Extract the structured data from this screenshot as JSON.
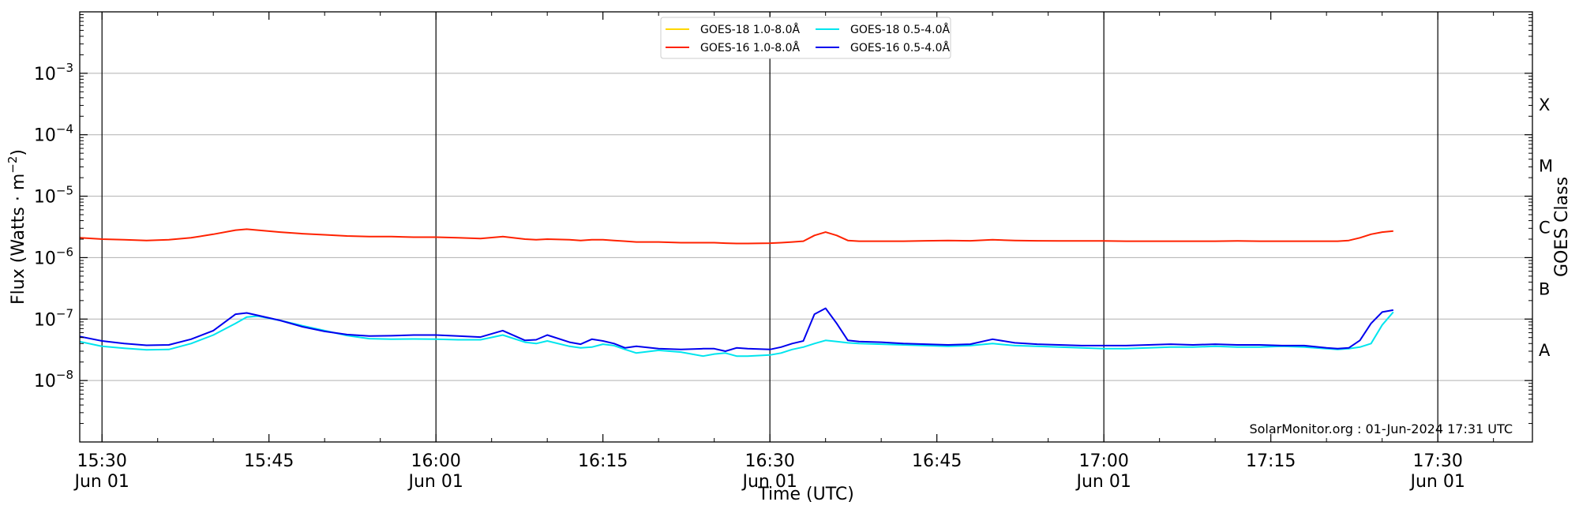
{
  "chart_data": {
    "type": "line",
    "xlabel": "Time (UTC)",
    "ylabel_main": "Flux (Watts · m",
    "ylabel_sup": "−2",
    "ylabel_close": ")",
    "right_label": "GOES Class",
    "yscale": "log",
    "ylim": [
      1e-09,
      0.01
    ],
    "xlim": [
      "2024-06-01T15:28:00",
      "2024-06-01T17:38:30"
    ],
    "grid": true,
    "legend_position": "top-center",
    "watermark": "SolarMonitor.org : 01-Jun-2024 17:31 UTC",
    "x_ticks": [
      {
        "t": "15:30",
        "time": "2024-06-01T15:30:00",
        "l1": "15:30",
        "l2": "Jun 01",
        "major": true
      },
      {
        "t": "15:45",
        "time": "2024-06-01T15:45:00",
        "l1": "15:45",
        "l2": "",
        "major": false
      },
      {
        "t": "16:00",
        "time": "2024-06-01T16:00:00",
        "l1": "16:00",
        "l2": "Jun 01",
        "major": true
      },
      {
        "t": "16:15",
        "time": "2024-06-01T16:15:00",
        "l1": "16:15",
        "l2": "",
        "major": false
      },
      {
        "t": "16:30",
        "time": "2024-06-01T16:30:00",
        "l1": "16:30",
        "l2": "Jun 01",
        "major": true
      },
      {
        "t": "16:45",
        "time": "2024-06-01T16:45:00",
        "l1": "16:45",
        "l2": "",
        "major": false
      },
      {
        "t": "17:00",
        "time": "2024-06-01T17:00:00",
        "l1": "17:00",
        "l2": "Jun 01",
        "major": true
      },
      {
        "t": "17:15",
        "time": "2024-06-01T17:15:00",
        "l1": "17:15",
        "l2": "",
        "major": false
      },
      {
        "t": "17:30",
        "time": "2024-06-01T17:30:00",
        "l1": "17:30",
        "l2": "Jun 01",
        "major": true
      }
    ],
    "y_ticks": [
      {
        "exp": -8,
        "label_base": "10",
        "label_exp": "−8"
      },
      {
        "exp": -7,
        "label_base": "10",
        "label_exp": "−7"
      },
      {
        "exp": -6,
        "label_base": "10",
        "label_exp": "−6"
      },
      {
        "exp": -5,
        "label_base": "10",
        "label_exp": "−5"
      },
      {
        "exp": -4,
        "label_base": "10",
        "label_exp": "−4"
      },
      {
        "exp": -3,
        "label_base": "10",
        "label_exp": "−3"
      }
    ],
    "goes_classes": [
      {
        "label": "A",
        "value": 3.16e-08
      },
      {
        "label": "B",
        "value": 3.16e-07
      },
      {
        "label": "C",
        "value": 3.16e-06
      },
      {
        "label": "M",
        "value": 3.16e-05
      },
      {
        "label": "X",
        "value": 0.000316
      }
    ],
    "legend_cols": [
      [
        {
          "name": "GOES-18 1.0-8.0Å",
          "color": "#ffd700"
        },
        {
          "name": "GOES-16 1.0-8.0Å",
          "color": "#ff2200"
        }
      ],
      [
        {
          "name": "GOES-18 0.5-4.0Å",
          "color": "#00e5ee"
        },
        {
          "name": "GOES-16 0.5-4.0Å",
          "color": "#0000ee"
        }
      ]
    ],
    "x": [
      "15:28",
      "15:30",
      "15:32",
      "15:34",
      "15:36",
      "15:38",
      "15:40",
      "15:42",
      "15:43",
      "15:44",
      "15:46",
      "15:48",
      "15:50",
      "15:52",
      "15:54",
      "15:56",
      "15:58",
      "16:00",
      "16:02",
      "16:04",
      "16:06",
      "16:08",
      "16:09",
      "16:10",
      "16:12",
      "16:13",
      "16:14",
      "16:15",
      "16:16",
      "16:17",
      "16:18",
      "16:20",
      "16:22",
      "16:24",
      "16:25",
      "16:26",
      "16:27",
      "16:28",
      "16:30",
      "16:31",
      "16:32",
      "16:33",
      "16:34",
      "16:35",
      "16:36",
      "16:37",
      "16:38",
      "16:40",
      "16:42",
      "16:44",
      "16:46",
      "16:48",
      "16:50",
      "16:52",
      "16:54",
      "16:56",
      "16:58",
      "17:00",
      "17:02",
      "17:04",
      "17:06",
      "17:08",
      "17:10",
      "17:12",
      "17:14",
      "17:16",
      "17:18",
      "17:20",
      "17:21",
      "17:22",
      "17:23",
      "17:24",
      "17:25",
      "17:26"
    ],
    "series": [
      {
        "name": "GOES-16 1.0-8.0Å",
        "color": "#ff2200",
        "values": [
          2.1e-06,
          2e-06,
          1.95e-06,
          1.9e-06,
          1.95e-06,
          2.1e-06,
          2.4e-06,
          2.8e-06,
          2.9e-06,
          2.8e-06,
          2.6e-06,
          2.45e-06,
          2.35e-06,
          2.25e-06,
          2.2e-06,
          2.2e-06,
          2.15e-06,
          2.15e-06,
          2.1e-06,
          2.05e-06,
          2.2e-06,
          2e-06,
          1.95e-06,
          2e-06,
          1.95e-06,
          1.9e-06,
          1.95e-06,
          1.95e-06,
          1.9e-06,
          1.85e-06,
          1.8e-06,
          1.8e-06,
          1.75e-06,
          1.75e-06,
          1.75e-06,
          1.72e-06,
          1.7e-06,
          1.7e-06,
          1.72e-06,
          1.75e-06,
          1.8e-06,
          1.85e-06,
          2.3e-06,
          2.6e-06,
          2.3e-06,
          1.9e-06,
          1.85e-06,
          1.85e-06,
          1.85e-06,
          1.88e-06,
          1.9e-06,
          1.88e-06,
          1.95e-06,
          1.9e-06,
          1.88e-06,
          1.87e-06,
          1.87e-06,
          1.87e-06,
          1.85e-06,
          1.85e-06,
          1.85e-06,
          1.85e-06,
          1.85e-06,
          1.87e-06,
          1.85e-06,
          1.85e-06,
          1.85e-06,
          1.85e-06,
          1.85e-06,
          1.9e-06,
          2.1e-06,
          2.4e-06,
          2.6e-06,
          2.7e-06
        ]
      },
      {
        "name": "GOES-18 0.5-4.0Å",
        "color": "#00e5ee",
        "values": [
          4.3e-08,
          3.6e-08,
          3.35e-08,
          3.15e-08,
          3.2e-08,
          4e-08,
          5.5e-08,
          8.5e-08,
          1.08e-07,
          1.12e-07,
          9.5e-08,
          7.8e-08,
          6.5e-08,
          5.4e-08,
          4.8e-08,
          4.7e-08,
          4.75e-08,
          4.7e-08,
          4.6e-08,
          4.6e-08,
          5.5e-08,
          4.2e-08,
          4e-08,
          4.4e-08,
          3.6e-08,
          3.4e-08,
          3.5e-08,
          3.9e-08,
          3.7e-08,
          3.2e-08,
          2.8e-08,
          3.1e-08,
          2.9e-08,
          2.5e-08,
          2.7e-08,
          2.8e-08,
          2.5e-08,
          2.5e-08,
          2.6e-08,
          2.8e-08,
          3.2e-08,
          3.5e-08,
          4e-08,
          4.5e-08,
          4.3e-08,
          4.1e-08,
          4e-08,
          3.9e-08,
          3.8e-08,
          3.7e-08,
          3.6e-08,
          3.7e-08,
          4e-08,
          3.7e-08,
          3.6e-08,
          3.5e-08,
          3.4e-08,
          3.3e-08,
          3.3e-08,
          3.4e-08,
          3.5e-08,
          3.5e-08,
          3.6e-08,
          3.5e-08,
          3.5e-08,
          3.6e-08,
          3.5e-08,
          3.3e-08,
          3.2e-08,
          3.3e-08,
          3.5e-08,
          4e-08,
          8e-08,
          1.3e-07
        ]
      },
      {
        "name": "GOES-16 0.5-4.0Å",
        "color": "#0000ee",
        "values": [
          5.2e-08,
          4.4e-08,
          4e-08,
          3.75e-08,
          3.8e-08,
          4.7e-08,
          6.5e-08,
          1.2e-07,
          1.26e-07,
          1.15e-07,
          9.5e-08,
          7.5e-08,
          6.3e-08,
          5.6e-08,
          5.3e-08,
          5.35e-08,
          5.5e-08,
          5.5e-08,
          5.3e-08,
          5.1e-08,
          6.5e-08,
          4.5e-08,
          4.6e-08,
          5.5e-08,
          4.2e-08,
          3.9e-08,
          4.7e-08,
          4.4e-08,
          4e-08,
          3.4e-08,
          3.6e-08,
          3.3e-08,
          3.2e-08,
          3.3e-08,
          3.3e-08,
          3e-08,
          3.4e-08,
          3.3e-08,
          3.2e-08,
          3.5e-08,
          4e-08,
          4.4e-08,
          1.2e-07,
          1.5e-07,
          8.5e-08,
          4.5e-08,
          4.3e-08,
          4.2e-08,
          4e-08,
          3.9e-08,
          3.8e-08,
          3.9e-08,
          4.7e-08,
          4.1e-08,
          3.9e-08,
          3.8e-08,
          3.7e-08,
          3.7e-08,
          3.7e-08,
          3.8e-08,
          3.9e-08,
          3.8e-08,
          3.9e-08,
          3.8e-08,
          3.8e-08,
          3.7e-08,
          3.7e-08,
          3.4e-08,
          3.3e-08,
          3.4e-08,
          4.5e-08,
          8.5e-08,
          1.3e-07,
          1.4e-07
        ]
      }
    ]
  }
}
